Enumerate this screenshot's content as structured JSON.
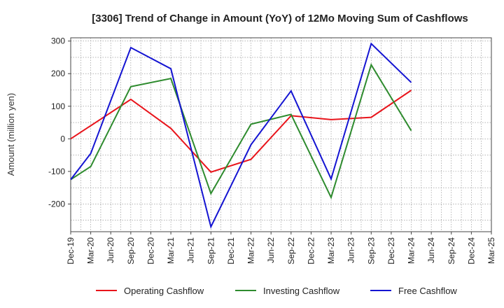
{
  "chart_data": {
    "type": "line",
    "title": "[3306]  Trend of Change in Amount (YoY) of 12Mo Moving Sum of Cashflows",
    "xlabel": "",
    "ylabel": "Amount (million yen)",
    "ylim": [
      -285,
      310
    ],
    "yticks": [
      -200,
      -100,
      0,
      100,
      200,
      300
    ],
    "ytick_labels": [
      "-200",
      "-100",
      "0",
      "100",
      "200",
      "300"
    ],
    "grid": true,
    "legend_position": "bottom",
    "categories": [
      "Dec-19",
      "Mar-20",
      "Jun-20",
      "Sep-20",
      "Dec-20",
      "Mar-21",
      "Jun-21",
      "Sep-21",
      "Dec-21",
      "Mar-22",
      "Jun-22",
      "Sep-22",
      "Dec-22",
      "Mar-23",
      "Jun-23",
      "Sep-23",
      "Dec-23",
      "Mar-24",
      "Jun-24",
      "Sep-24",
      "Dec-24",
      "Mar-25"
    ],
    "series": [
      {
        "name": "Operating Cashflow",
        "color": "#e8141b",
        "values": [
          0,
          null,
          null,
          121,
          null,
          32,
          null,
          -102,
          null,
          -63,
          null,
          71,
          null,
          59,
          null,
          66,
          null,
          149,
          null,
          null,
          null,
          null
        ]
      },
      {
        "name": "Investing Cashflow",
        "color": "#2e8b2e",
        "values": [
          -125,
          -85,
          null,
          160,
          null,
          185,
          null,
          -168,
          null,
          45,
          null,
          75,
          null,
          -180,
          null,
          227,
          null,
          25,
          null,
          null,
          null,
          null
        ]
      },
      {
        "name": "Free Cashflow",
        "color": "#1414d2",
        "values": [
          -125,
          -45,
          null,
          280,
          null,
          215,
          null,
          -270,
          null,
          -18,
          null,
          147,
          null,
          -123,
          null,
          292,
          null,
          173,
          null,
          null,
          null,
          null
        ]
      }
    ]
  }
}
